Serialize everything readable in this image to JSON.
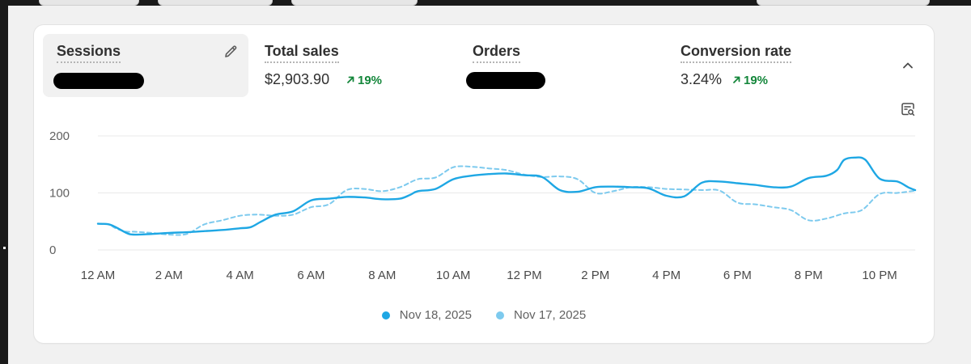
{
  "metrics": [
    {
      "label": "Sessions",
      "value": "",
      "change": "",
      "redacted": true,
      "active": true
    },
    {
      "label": "Total sales",
      "value": "$2,903.90",
      "change": "19%",
      "redacted": false,
      "active": false
    },
    {
      "label": "Orders",
      "value": "",
      "change": "",
      "redacted": true,
      "active": false
    },
    {
      "label": "Conversion rate",
      "value": "3.24%",
      "change": "19%",
      "redacted": false,
      "active": false
    }
  ],
  "icons": {
    "edit": "pencil-icon",
    "collapse": "chevron-up-icon",
    "insights": "report-search-icon",
    "trend": "arrow-up-right-icon"
  },
  "colors": {
    "positive": "#13863a",
    "series_primary": "#1ea7e4",
    "series_secondary": "#7dcaee"
  },
  "chart_data": {
    "type": "line",
    "y_ticks": [
      "0",
      "100",
      "200"
    ],
    "ylim": [
      0,
      200
    ],
    "grid": true,
    "x_tick_labels": [
      "12 AM",
      "2 AM",
      "4 AM",
      "6 AM",
      "8 AM",
      "10 AM",
      "12 PM",
      "2 PM",
      "4 PM",
      "6 PM",
      "8 PM",
      "10 PM"
    ],
    "xlim": [
      0,
      23
    ],
    "legend_position": "bottom-center",
    "series": [
      {
        "name": "Nov 18, 2025",
        "style": "solid",
        "color": "#1ea7e4",
        "points": [
          [
            0,
            46
          ],
          [
            0.3,
            45
          ],
          [
            0.5,
            40
          ],
          [
            0.8,
            30
          ],
          [
            1,
            27
          ],
          [
            1.5,
            28
          ],
          [
            2,
            30
          ],
          [
            2.5,
            31
          ],
          [
            3,
            33
          ],
          [
            3.5,
            35
          ],
          [
            4,
            38
          ],
          [
            4.3,
            40
          ],
          [
            4.6,
            50
          ],
          [
            5,
            62
          ],
          [
            5.5,
            68
          ],
          [
            6,
            87
          ],
          [
            6.5,
            90
          ],
          [
            7,
            93
          ],
          [
            7.5,
            92
          ],
          [
            8,
            89
          ],
          [
            8.5,
            90
          ],
          [
            8.8,
            97
          ],
          [
            9,
            103
          ],
          [
            9.5,
            107
          ],
          [
            10,
            124
          ],
          [
            10.5,
            130
          ],
          [
            11,
            133
          ],
          [
            11.5,
            134
          ],
          [
            12,
            131
          ],
          [
            12.5,
            128
          ],
          [
            13,
            105
          ],
          [
            13.5,
            102
          ],
          [
            14,
            110
          ],
          [
            14.5,
            111
          ],
          [
            15,
            110
          ],
          [
            15.5,
            108
          ],
          [
            16,
            95
          ],
          [
            16.5,
            94
          ],
          [
            17,
            118
          ],
          [
            17.5,
            120
          ],
          [
            18,
            117
          ],
          [
            18.5,
            114
          ],
          [
            19,
            110
          ],
          [
            19.5,
            111
          ],
          [
            20,
            126
          ],
          [
            20.5,
            130
          ],
          [
            20.8,
            140
          ],
          [
            21,
            158
          ],
          [
            21.3,
            162
          ],
          [
            21.6,
            158
          ],
          [
            22,
            125
          ],
          [
            22.5,
            120
          ],
          [
            22.8,
            110
          ],
          [
            23,
            105
          ]
        ]
      },
      {
        "name": "Nov 17, 2025",
        "style": "dashed",
        "color": "#7dcaee",
        "points": [
          [
            0,
            46
          ],
          [
            0.3,
            45
          ],
          [
            0.5,
            38
          ],
          [
            0.8,
            32
          ],
          [
            1,
            32
          ],
          [
            1.5,
            30
          ],
          [
            2,
            27
          ],
          [
            2.5,
            28
          ],
          [
            3,
            45
          ],
          [
            3.5,
            52
          ],
          [
            4,
            60
          ],
          [
            4.5,
            62
          ],
          [
            5,
            60
          ],
          [
            5.5,
            62
          ],
          [
            6,
            75
          ],
          [
            6.5,
            80
          ],
          [
            7,
            105
          ],
          [
            7.5,
            107
          ],
          [
            8,
            103
          ],
          [
            8.5,
            110
          ],
          [
            9,
            124
          ],
          [
            9.5,
            127
          ],
          [
            10,
            145
          ],
          [
            10.5,
            146
          ],
          [
            11,
            143
          ],
          [
            11.5,
            140
          ],
          [
            12,
            132
          ],
          [
            12.5,
            128
          ],
          [
            13,
            129
          ],
          [
            13.5,
            124
          ],
          [
            14,
            100
          ],
          [
            14.5,
            103
          ],
          [
            15,
            110
          ],
          [
            15.5,
            110
          ],
          [
            16,
            107
          ],
          [
            16.5,
            106
          ],
          [
            17,
            105
          ],
          [
            17.5,
            104
          ],
          [
            18,
            83
          ],
          [
            18.5,
            80
          ],
          [
            19,
            75
          ],
          [
            19.5,
            70
          ],
          [
            20,
            52
          ],
          [
            20.5,
            55
          ],
          [
            21,
            64
          ],
          [
            21.5,
            70
          ],
          [
            22,
            98
          ],
          [
            22.5,
            100
          ],
          [
            23,
            104
          ]
        ]
      }
    ]
  }
}
